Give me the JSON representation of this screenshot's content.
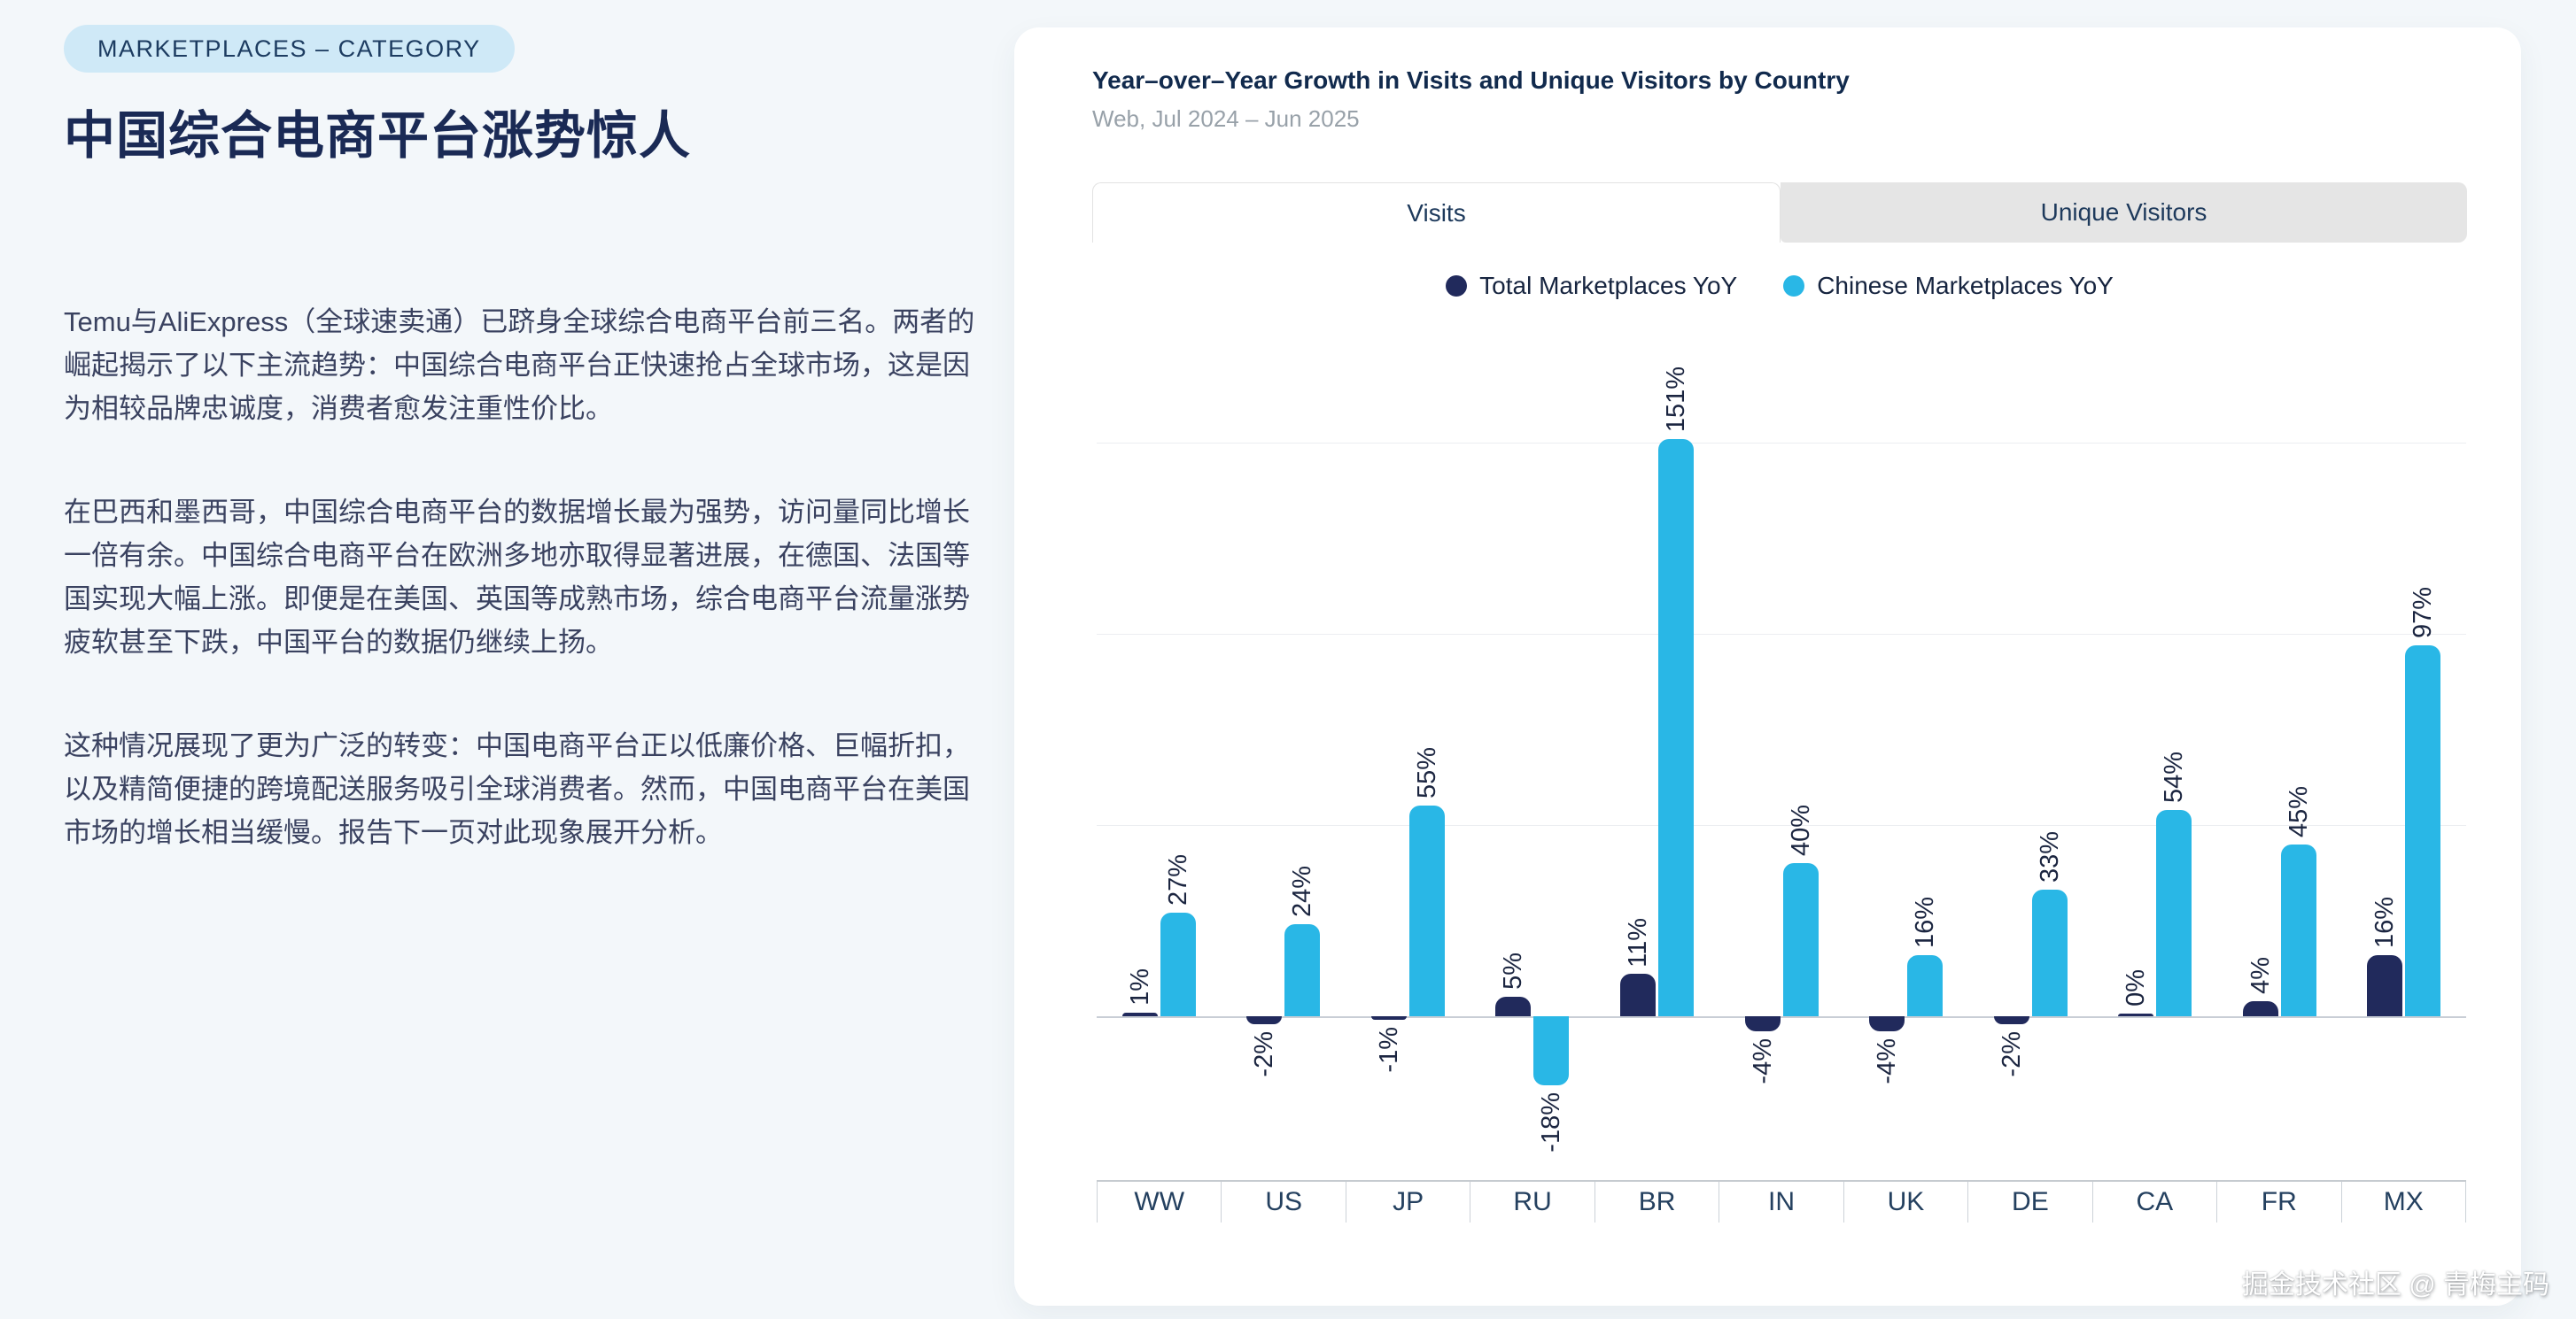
{
  "left": {
    "badge": "MARKETPLACES – CATEGORY",
    "title": "中国综合电商平台涨势惊人",
    "paragraphs": [
      "Temu与AliExpress（全球速卖通）已跻身全球综合电商平台前三名。两者的崛起揭示了以下主流趋势：中国综合电商平台正快速抢占全球市场，这是因为相较品牌忠诚度，消费者愈发注重性价比。",
      "在巴西和墨西哥，中国综合电商平台的数据增长最为强势，访问量同比增长一倍有余。中国综合电商平台在欧洲多地亦取得显著进展，在德国、法国等国实现大幅上涨。即便是在美国、英国等成熟市场，综合电商平台流量涨势疲软甚至下跌，中国平台的数据仍继续上扬。",
      "这种情况展现了更为广泛的转变：中国电商平台正以低廉价格、巨幅折扣，以及精简便捷的跨境配送服务吸引全球消费者。然而，中国电商平台在美国市场的增长相当缓慢。报告下一页对此现象展开分析。"
    ]
  },
  "chart": {
    "title": "Year–over–Year Growth in Visits and Unique Visitors by Country",
    "subtitle": "Web, Jul 2024 – Jun 2025",
    "tabs": [
      {
        "label": "Visits",
        "active": true
      },
      {
        "label": "Unique Visitors",
        "active": false
      }
    ],
    "legend": [
      {
        "label": "Total Marketplaces YoY",
        "color": "#212a5c"
      },
      {
        "label": "Chinese Marketplaces YoY",
        "color": "#29b7e6"
      }
    ]
  },
  "chart_data": {
    "type": "bar",
    "categories": [
      "WW",
      "US",
      "JP",
      "RU",
      "BR",
      "IN",
      "UK",
      "DE",
      "CA",
      "FR",
      "MX"
    ],
    "series": [
      {
        "name": "Total Marketplaces YoY",
        "color": "#212a5c",
        "values": [
          1,
          -2,
          -1,
          5,
          11,
          -4,
          -4,
          -2,
          0,
          4,
          16
        ]
      },
      {
        "name": "Chinese Marketplaces YoY",
        "color": "#29b7e6",
        "values": [
          27,
          24,
          55,
          -18,
          151,
          40,
          16,
          33,
          54,
          45,
          97
        ]
      }
    ],
    "unit": "%",
    "value_labels": "rotated-90",
    "gridlines_pct": [
      150,
      100,
      50,
      0
    ],
    "ylim": [
      -30,
      170
    ],
    "legend_position": "top",
    "xlabel": "",
    "ylabel": ""
  },
  "colors": {
    "page_bg": "#f3f7fa",
    "card_bg": "#ffffff",
    "badge_bg": "#cfe9f7",
    "title_navy": "#1a2a55",
    "inactive_tab_bg": "#e5e5e5"
  },
  "watermark": {
    "text": "掘金技术社区 @ 青梅主码"
  }
}
